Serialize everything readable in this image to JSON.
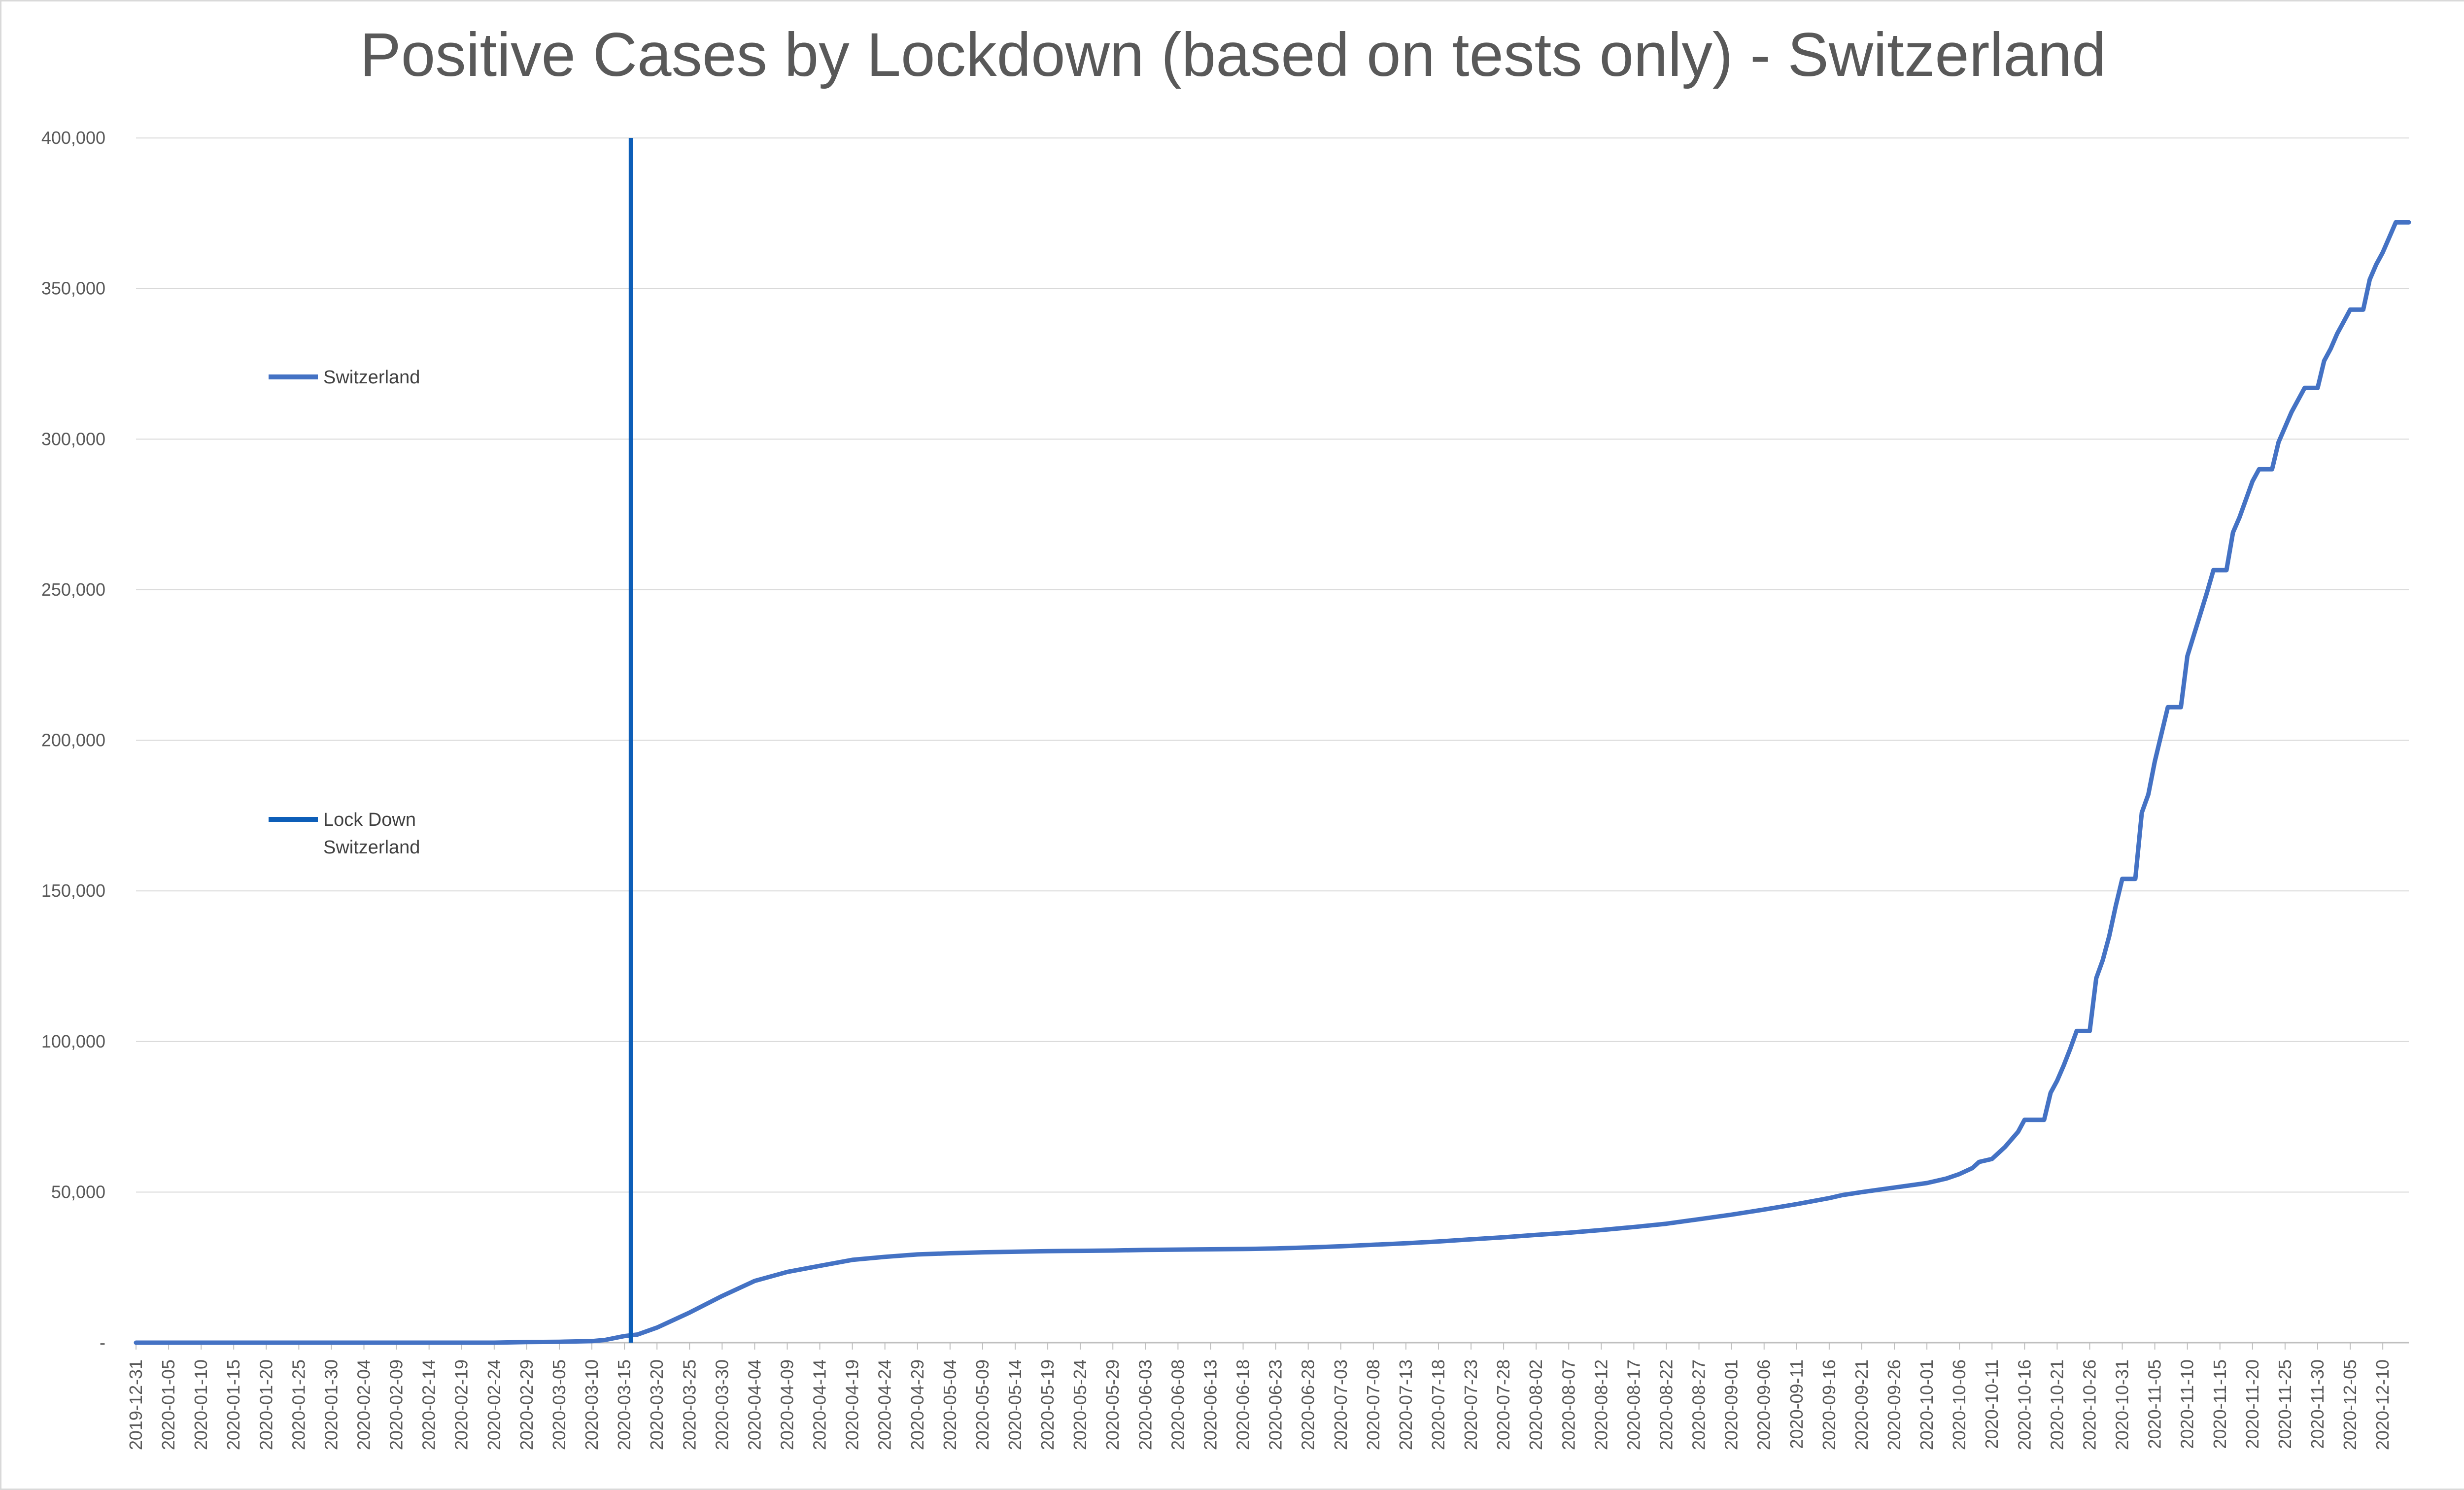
{
  "chart_data": {
    "type": "line",
    "title": "Positive Cases by Lockdown (based on tests only) - Switzerland",
    "xlabel": "",
    "ylabel": "",
    "ylim": [
      0,
      400000
    ],
    "y_ticks": [
      0,
      50000,
      100000,
      150000,
      200000,
      250000,
      300000,
      350000,
      400000
    ],
    "y_tick_labels": [
      "-",
      "50,000",
      "100,000",
      "150,000",
      "200,000",
      "250,000",
      "300,000",
      "350,000",
      "400,000"
    ],
    "x_start": "2019-12-31",
    "x_end": "2020-12-14",
    "x_tick_labels": [
      "2019-12-31",
      "2020-01-05",
      "2020-01-10",
      "2020-01-15",
      "2020-01-20",
      "2020-01-25",
      "2020-01-30",
      "2020-02-04",
      "2020-02-09",
      "2020-02-14",
      "2020-02-19",
      "2020-02-24",
      "2020-02-29",
      "2020-03-05",
      "2020-03-10",
      "2020-03-15",
      "2020-03-20",
      "2020-03-25",
      "2020-03-30",
      "2020-04-04",
      "2020-04-09",
      "2020-04-14",
      "2020-04-19",
      "2020-04-24",
      "2020-04-29",
      "2020-05-04",
      "2020-05-09",
      "2020-05-14",
      "2020-05-19",
      "2020-05-24",
      "2020-05-29",
      "2020-06-03",
      "2020-06-08",
      "2020-06-13",
      "2020-06-18",
      "2020-06-23",
      "2020-06-28",
      "2020-07-03",
      "2020-07-08",
      "2020-07-13",
      "2020-07-18",
      "2020-07-23",
      "2020-07-28",
      "2020-08-02",
      "2020-08-07",
      "2020-08-12",
      "2020-08-17",
      "2020-08-22",
      "2020-08-27",
      "2020-09-01",
      "2020-09-06",
      "2020-09-11",
      "2020-09-16",
      "2020-09-21",
      "2020-09-26",
      "2020-10-01",
      "2020-10-06",
      "2020-10-11",
      "2020-10-16",
      "2020-10-21",
      "2020-10-26",
      "2020-10-31",
      "2020-11-05",
      "2020-11-10",
      "2020-11-15",
      "2020-11-20",
      "2020-11-25",
      "2020-11-30",
      "2020-12-05",
      "2020-12-10"
    ],
    "grid": true,
    "legend_position": "left",
    "series": [
      {
        "name": "Switzerland",
        "color": "#4472c4",
        "points": [
          [
            "2019-12-31",
            0
          ],
          [
            "2020-02-24",
            0
          ],
          [
            "2020-02-29",
            200
          ],
          [
            "2020-03-05",
            300
          ],
          [
            "2020-03-10",
            500
          ],
          [
            "2020-03-12",
            900
          ],
          [
            "2020-03-15",
            2200
          ],
          [
            "2020-03-17",
            2700
          ],
          [
            "2020-03-20",
            5000
          ],
          [
            "2020-03-25",
            10000
          ],
          [
            "2020-03-30",
            15500
          ],
          [
            "2020-04-04",
            20500
          ],
          [
            "2020-04-09",
            23500
          ],
          [
            "2020-04-14",
            25500
          ],
          [
            "2020-04-19",
            27500
          ],
          [
            "2020-04-24",
            28500
          ],
          [
            "2020-04-29",
            29300
          ],
          [
            "2020-05-04",
            29700
          ],
          [
            "2020-05-09",
            30000
          ],
          [
            "2020-05-14",
            30200
          ],
          [
            "2020-05-19",
            30400
          ],
          [
            "2020-05-24",
            30500
          ],
          [
            "2020-05-29",
            30600
          ],
          [
            "2020-06-03",
            30800
          ],
          [
            "2020-06-08",
            30900
          ],
          [
            "2020-06-13",
            31000
          ],
          [
            "2020-06-18",
            31100
          ],
          [
            "2020-06-23",
            31300
          ],
          [
            "2020-06-28",
            31600
          ],
          [
            "2020-07-03",
            32000
          ],
          [
            "2020-07-08",
            32500
          ],
          [
            "2020-07-13",
            33000
          ],
          [
            "2020-07-18",
            33600
          ],
          [
            "2020-07-23",
            34300
          ],
          [
            "2020-07-28",
            35000
          ],
          [
            "2020-08-02",
            35800
          ],
          [
            "2020-08-07",
            36500
          ],
          [
            "2020-08-12",
            37400
          ],
          [
            "2020-08-17",
            38400
          ],
          [
            "2020-08-22",
            39500
          ],
          [
            "2020-08-27",
            41000
          ],
          [
            "2020-09-01",
            42500
          ],
          [
            "2020-09-06",
            44200
          ],
          [
            "2020-09-11",
            46000
          ],
          [
            "2020-09-16",
            48000
          ],
          [
            "2020-09-18",
            49000
          ],
          [
            "2020-09-21",
            50000
          ],
          [
            "2020-09-26",
            51500
          ],
          [
            "2020-10-01",
            53000
          ],
          [
            "2020-10-04",
            54500
          ],
          [
            "2020-10-06",
            56000
          ],
          [
            "2020-10-08",
            58000
          ],
          [
            "2020-10-09",
            60000
          ],
          [
            "2020-10-11",
            61000
          ],
          [
            "2020-10-13",
            65000
          ],
          [
            "2020-10-15",
            70000
          ],
          [
            "2020-10-16",
            74000
          ],
          [
            "2020-10-19",
            74000
          ],
          [
            "2020-10-20",
            83000
          ],
          [
            "2020-10-21",
            87000
          ],
          [
            "2020-10-22",
            92000
          ],
          [
            "2020-10-23",
            97500
          ],
          [
            "2020-10-24",
            103500
          ],
          [
            "2020-10-26",
            103500
          ],
          [
            "2020-10-27",
            121000
          ],
          [
            "2020-10-28",
            127000
          ],
          [
            "2020-10-29",
            135000
          ],
          [
            "2020-10-30",
            145000
          ],
          [
            "2020-10-31",
            154000
          ],
          [
            "2020-11-02",
            154000
          ],
          [
            "2020-11-03",
            176000
          ],
          [
            "2020-11-04",
            182000
          ],
          [
            "2020-11-05",
            193000
          ],
          [
            "2020-11-06",
            202000
          ],
          [
            "2020-11-07",
            211000
          ],
          [
            "2020-11-09",
            211000
          ],
          [
            "2020-11-10",
            228000
          ],
          [
            "2020-11-11",
            235000
          ],
          [
            "2020-11-12",
            242000
          ],
          [
            "2020-11-13",
            249000
          ],
          [
            "2020-11-14",
            256500
          ],
          [
            "2020-11-16",
            256500
          ],
          [
            "2020-11-17",
            269000
          ],
          [
            "2020-11-18",
            274000
          ],
          [
            "2020-11-19",
            280000
          ],
          [
            "2020-11-20",
            286000
          ],
          [
            "2020-11-21",
            290000
          ],
          [
            "2020-11-23",
            290000
          ],
          [
            "2020-11-24",
            299000
          ],
          [
            "2020-11-25",
            304000
          ],
          [
            "2020-11-26",
            309000
          ],
          [
            "2020-11-27",
            313000
          ],
          [
            "2020-11-28",
            317000
          ],
          [
            "2020-11-30",
            317000
          ],
          [
            "2020-12-01",
            326000
          ],
          [
            "2020-12-02",
            330000
          ],
          [
            "2020-12-03",
            335000
          ],
          [
            "2020-12-04",
            339000
          ],
          [
            "2020-12-05",
            343000
          ],
          [
            "2020-12-07",
            343000
          ],
          [
            "2020-12-08",
            353000
          ],
          [
            "2020-12-09",
            358000
          ],
          [
            "2020-12-10",
            362000
          ],
          [
            "2020-12-11",
            367000
          ],
          [
            "2020-12-12",
            372000
          ],
          [
            "2020-12-14",
            372000
          ]
        ]
      },
      {
        "name": "Lock Down Switzerland",
        "color": "#0d5eb8",
        "type": "vertical-line",
        "x": "2020-03-16",
        "y": [
          0,
          400000
        ]
      }
    ],
    "legend": [
      {
        "label_lines": [
          "Switzerland"
        ],
        "color": "#4472c4"
      },
      {
        "label_lines": [
          "Lock Down",
          "Switzerland"
        ],
        "color": "#0d5eb8"
      }
    ]
  }
}
